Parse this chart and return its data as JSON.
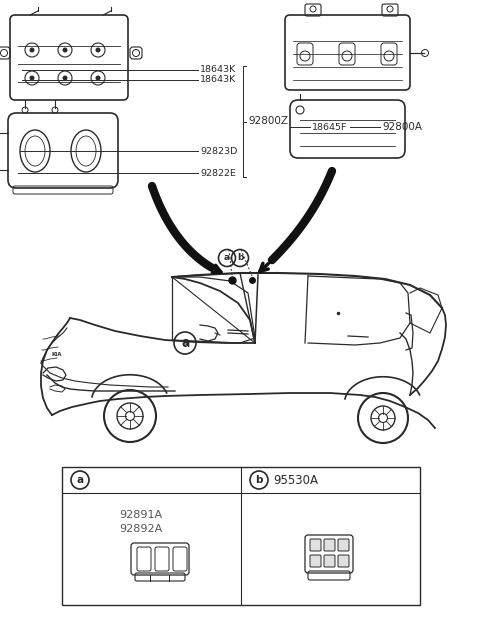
{
  "bg_color": "#ffffff",
  "line_color": "#2a2a2a",
  "text_color": "#2a2a2a",
  "gray_text_color": "#555555",
  "left_labels": [
    "18643K",
    "18643K",
    "92823D",
    "92822E"
  ],
  "left_group_label": "92800Z",
  "right_label_1": "18645F",
  "right_label_2": "92800A",
  "bottom_a_labels": [
    "92891A",
    "92892A"
  ],
  "bottom_b_label": "95530A",
  "fig_width": 4.8,
  "fig_height": 6.33,
  "dpi": 100
}
